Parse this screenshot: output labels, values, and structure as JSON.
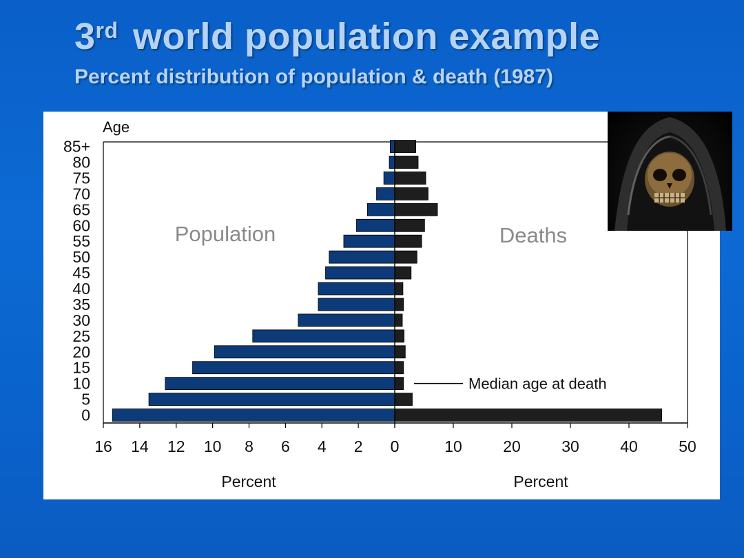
{
  "slide": {
    "title_main": "3",
    "title_sup": "rd",
    "title_rest": " world population example",
    "subtitle": "Percent distribution of population & death (1987)"
  },
  "image": {
    "icon": "grim-reaper-skull"
  },
  "colors": {
    "population_bar": "#0d3a78",
    "deaths_bar": "#1e1e1e",
    "background": "#0b63cc",
    "title_text": "#b7d3f2"
  },
  "chart_data": {
    "type": "bar",
    "orientation": "horizontal",
    "y_axis_label": "Age",
    "categories": [
      "0",
      "5",
      "10",
      "15",
      "20",
      "25",
      "30",
      "35",
      "40",
      "45",
      "50",
      "55",
      "60",
      "65",
      "70",
      "75",
      "80",
      "85+"
    ],
    "series": [
      {
        "name": "Population",
        "side": "left",
        "xlabel": "Percent",
        "xlim": [
          16,
          0
        ],
        "ticks": [
          16,
          14,
          12,
          10,
          8,
          6,
          4,
          2,
          0
        ],
        "values": [
          15.5,
          13.5,
          12.6,
          11.1,
          9.9,
          7.8,
          5.3,
          4.2,
          4.2,
          3.8,
          3.6,
          2.8,
          2.1,
          1.5,
          1.0,
          0.6,
          0.3,
          0.25
        ]
      },
      {
        "name": "Deaths",
        "side": "right",
        "xlabel": "Percent",
        "xlim": [
          0,
          50
        ],
        "ticks": [
          0,
          10,
          20,
          30,
          40,
          50
        ],
        "values": [
          45.6,
          3.0,
          1.5,
          1.5,
          1.8,
          1.6,
          1.3,
          1.5,
          1.4,
          2.8,
          3.8,
          4.6,
          5.1,
          7.3,
          5.7,
          5.3,
          4.0,
          3.6
        ]
      }
    ],
    "annotation": "Median age at death",
    "grid": false
  }
}
